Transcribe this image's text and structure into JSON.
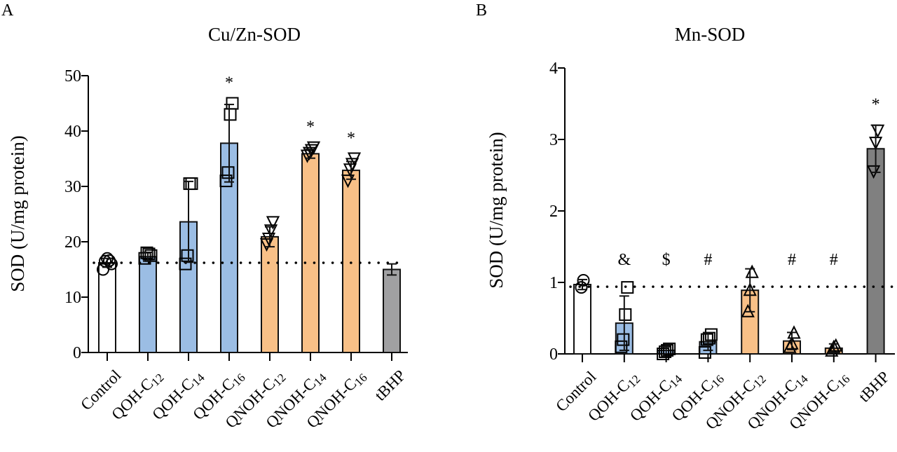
{
  "chart_data": [
    {
      "panel": "A",
      "type": "bar",
      "title": "Cu/Zn-SOD",
      "xlabel": "",
      "ylabel": "SOD (U/mg protein)",
      "ylim": [
        0,
        50
      ],
      "yticks": [
        0,
        10,
        20,
        30,
        40,
        50
      ],
      "grid": false,
      "reference_line": {
        "value": 16.2,
        "style": "dotted"
      },
      "categories": [
        {
          "base": "Control",
          "sub": ""
        },
        {
          "base": "QOH-C",
          "sub": "12"
        },
        {
          "base": "QOH-C",
          "sub": "14"
        },
        {
          "base": "QOH-C",
          "sub": "16"
        },
        {
          "base": "QNOH-C",
          "sub": "12"
        },
        {
          "base": "QNOH-C",
          "sub": "14"
        },
        {
          "base": "QNOH-C",
          "sub": "16"
        },
        {
          "base": "tBHP",
          "sub": ""
        }
      ],
      "values": [
        16.2,
        17.3,
        23.6,
        37.8,
        20.9,
        35.9,
        32.9,
        15.0
      ],
      "error": [
        0.8,
        0.8,
        7.3,
        7.0,
        1.8,
        0.8,
        1.6,
        1.0
      ],
      "colors": [
        "#ffffff",
        "#9bbde4",
        "#9bbde4",
        "#9bbde4",
        "#f8c087",
        "#f8c087",
        "#f8c087",
        "#a0a0a2"
      ],
      "markers": [
        "circle",
        "square",
        "square",
        "square",
        "triangle-down",
        "triangle-down",
        "triangle-down",
        "none"
      ],
      "points": [
        [
          15,
          16.5,
          17,
          16.6,
          16
        ],
        [
          17,
          18,
          17.8,
          17.5
        ],
        [
          16,
          17.5,
          30.5,
          30.5
        ],
        [
          31,
          32.5,
          43,
          45
        ],
        [
          19.5,
          20.5,
          22,
          23.5
        ],
        [
          35.5,
          36,
          36.5,
          37
        ],
        [
          31,
          33,
          34,
          35
        ],
        []
      ],
      "annotations": [
        "",
        "",
        "",
        "*",
        "",
        "*",
        "*",
        ""
      ]
    },
    {
      "panel": "B",
      "type": "bar",
      "title": "Mn-SOD",
      "xlabel": "",
      "ylabel": "SOD (U/mg protein)",
      "ylim": [
        0,
        4
      ],
      "yticks": [
        0,
        1,
        2,
        3,
        4
      ],
      "grid": false,
      "reference_line": {
        "value": 0.94,
        "style": "dotted"
      },
      "categories": [
        {
          "base": "Control",
          "sub": ""
        },
        {
          "base": "QOH-C",
          "sub": "12"
        },
        {
          "base": "QOH-C",
          "sub": "14"
        },
        {
          "base": "QOH-C",
          "sub": "16"
        },
        {
          "base": "QNOH-C",
          "sub": "12"
        },
        {
          "base": "QNOH-C",
          "sub": "14"
        },
        {
          "base": "QNOH-C",
          "sub": "16"
        },
        {
          "base": "tBHP",
          "sub": ""
        }
      ],
      "values": [
        0.97,
        0.43,
        0.05,
        0.17,
        0.89,
        0.18,
        0.08,
        2.87
      ],
      "error": [
        0.07,
        0.38,
        0.05,
        0.12,
        0.3,
        0.12,
        0.06,
        0.33
      ],
      "colors": [
        "#ffffff",
        "#9bbde4",
        "#9bbde4",
        "#9bbde4",
        "#f8c087",
        "#f8c087",
        "#f8c087",
        "#808080"
      ],
      "markers": [
        "circle",
        "square",
        "square",
        "square",
        "triangle-up",
        "triangle-up",
        "triangle-up",
        "triangle-down"
      ],
      "points": [
        [
          0.93,
          1.03
        ],
        [
          0.1,
          0.2,
          0.55,
          0.93
        ],
        [
          0.0,
          0.03,
          0.05,
          0.07
        ],
        [
          0.02,
          0.2,
          0.22,
          0.27
        ],
        [
          0.6,
          0.9,
          1.15
        ],
        [
          0.1,
          0.15,
          0.3
        ],
        [
          0.05,
          0.1,
          0.12
        ],
        [
          2.55,
          2.95,
          3.12
        ]
      ],
      "annotations": [
        "",
        "&",
        "$",
        "#",
        "",
        "#",
        "#",
        "*"
      ]
    }
  ],
  "panels": {
    "a": {
      "letter": "A"
    },
    "b": {
      "letter": "B"
    }
  }
}
